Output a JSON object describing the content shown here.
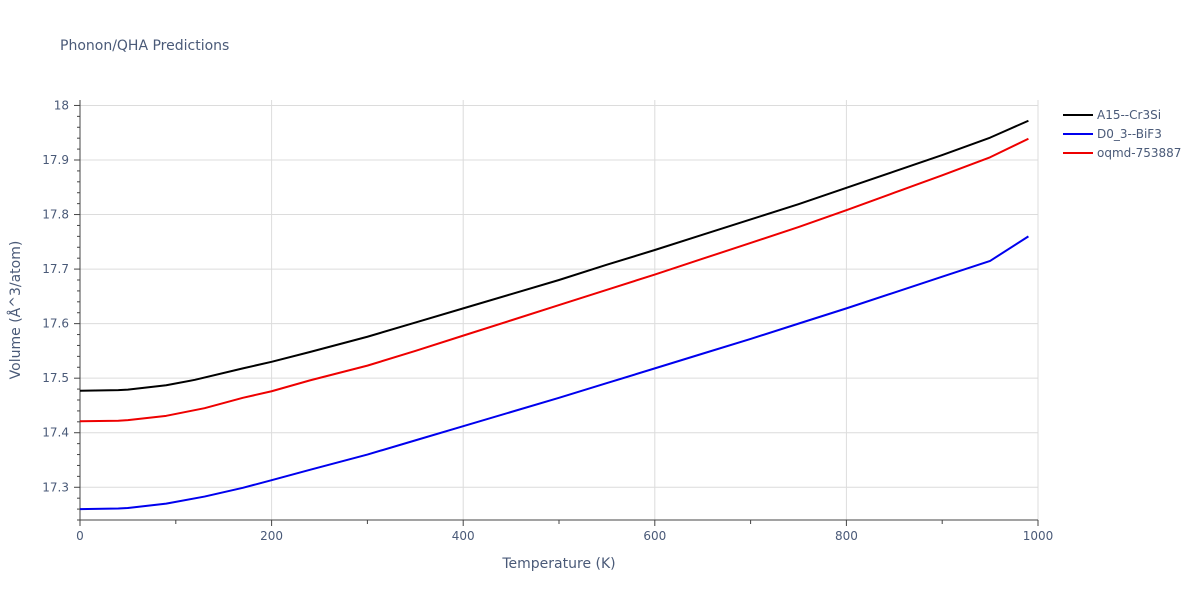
{
  "chart_data": {
    "type": "line",
    "title": "Phonon/QHA Predictions",
    "xlabel": "Temperature (K)",
    "ylabel": "Volume (Å^3/atom)",
    "xlim": [
      0,
      1000
    ],
    "ylim": [
      17.24,
      18.01
    ],
    "xticks": [
      0,
      200,
      400,
      600,
      800,
      1000
    ],
    "yticks": [
      17.3,
      17.4,
      17.5,
      17.6,
      17.7,
      17.8,
      17.9,
      18
    ],
    "grid": true,
    "legend_position": "top-right",
    "series": [
      {
        "name": "A15--Cr3Si",
        "color": "#000000",
        "x": [
          0,
          40,
          50,
          90,
          120,
          170,
          200,
          240,
          300,
          350,
          400,
          450,
          500,
          550,
          600,
          650,
          700,
          750,
          800,
          850,
          900,
          950,
          990
        ],
        "y": [
          17.477,
          17.478,
          17.479,
          17.487,
          17.497,
          17.518,
          17.53,
          17.548,
          17.576,
          17.602,
          17.628,
          17.654,
          17.68,
          17.708,
          17.735,
          17.763,
          17.791,
          17.819,
          17.849,
          17.879,
          17.909,
          17.941,
          17.972
        ]
      },
      {
        "name": "D0_3--BiF3",
        "color": "#0000ee",
        "x": [
          0,
          40,
          50,
          90,
          130,
          170,
          200,
          240,
          300,
          350,
          400,
          450,
          500,
          550,
          600,
          650,
          700,
          750,
          800,
          850,
          900,
          950,
          990
        ],
        "y": [
          17.26,
          17.261,
          17.262,
          17.27,
          17.283,
          17.299,
          17.313,
          17.332,
          17.36,
          17.386,
          17.412,
          17.438,
          17.464,
          17.491,
          17.518,
          17.545,
          17.572,
          17.6,
          17.628,
          17.657,
          17.686,
          17.715,
          17.76
        ]
      },
      {
        "name": "oqmd-753887",
        "color": "#ee0000",
        "x": [
          0,
          40,
          50,
          90,
          130,
          170,
          200,
          240,
          300,
          350,
          400,
          450,
          500,
          550,
          600,
          650,
          700,
          750,
          800,
          850,
          900,
          950,
          990
        ],
        "y": [
          17.421,
          17.422,
          17.423,
          17.431,
          17.445,
          17.464,
          17.476,
          17.496,
          17.523,
          17.55,
          17.578,
          17.606,
          17.634,
          17.662,
          17.69,
          17.719,
          17.748,
          17.777,
          17.808,
          17.84,
          17.872,
          17.905,
          17.939
        ]
      }
    ]
  }
}
